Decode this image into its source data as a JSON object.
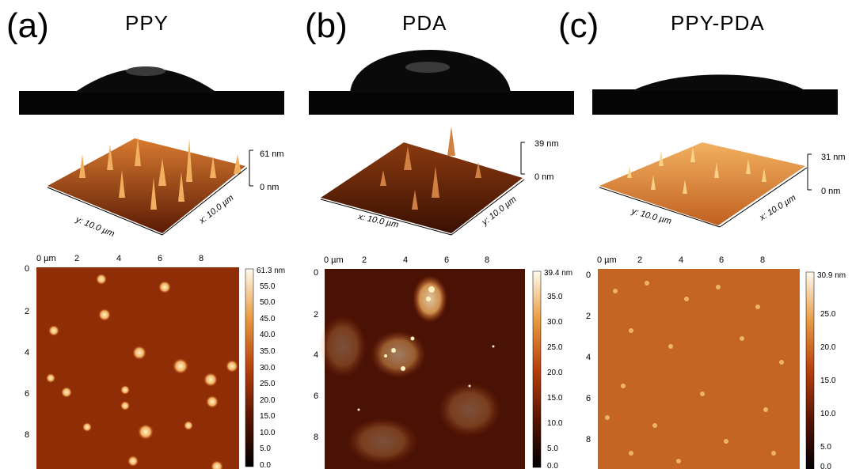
{
  "panels": [
    {
      "letter": "(a)",
      "title": "PPY",
      "surface": {
        "z_max": "61 nm",
        "z_min": "0 nm",
        "x_label": "x: 10.0 µm",
        "y_label": "y: 10.0 µm"
      },
      "map": {
        "x_ticks": [
          "0 µm",
          "2",
          "4",
          "6",
          "8"
        ],
        "y_ticks": [
          "0",
          "2",
          "4",
          "6",
          "8"
        ],
        "scale_ticks": [
          "61.3 nm",
          "55.0",
          "50.0",
          "45.0",
          "40.0",
          "35.0",
          "30.0",
          "25.0",
          "20.0",
          "15.0",
          "10.0",
          "5.0",
          "0.0"
        ]
      }
    },
    {
      "letter": "(b)",
      "title": "PDA",
      "surface": {
        "z_max": "39 nm",
        "z_min": "0 nm",
        "x_label": "x: 10.0 µm",
        "y_label": "y: 10.0 µm"
      },
      "map": {
        "x_ticks": [
          "0 µm",
          "2",
          "4",
          "6",
          "8"
        ],
        "y_ticks": [
          "0",
          "2",
          "4",
          "6",
          "8"
        ],
        "scale_ticks": [
          "39.4 nm",
          "35.0",
          "30.0",
          "25.0",
          "20.0",
          "15.0",
          "10.0",
          "5.0",
          "0.0"
        ]
      }
    },
    {
      "letter": "(c)",
      "title": "PPY-PDA",
      "surface": {
        "z_max": "31 nm",
        "z_min": "0 nm",
        "x_label": "x: 10.0 µm",
        "y_label": "y: 10.0 µm"
      },
      "map": {
        "x_ticks": [
          "0 µm",
          "2",
          "4",
          "6",
          "8"
        ],
        "y_ticks": [
          "0",
          "2",
          "4",
          "6",
          "8"
        ],
        "scale_ticks": [
          "30.9 nm",
          "25.0",
          "20.0",
          "15.0",
          "10.0",
          "5.0",
          "0.0"
        ]
      }
    }
  ],
  "colors": {
    "afm_dark": "#1a0500",
    "afm_mid": "#a0300a",
    "afm_light": "#f5c070",
    "afm_white": "#fff8e8"
  }
}
